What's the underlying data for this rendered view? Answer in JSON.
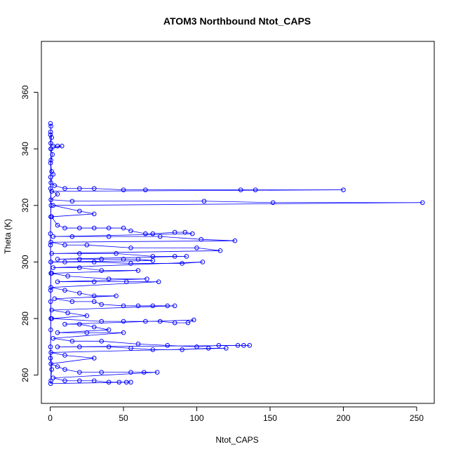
{
  "chart_data": {
    "type": "scatter",
    "title": "ATOM3 Northbound Ntot_CAPS",
    "xlabel": "Ntot_CAPS",
    "ylabel": "Theta (K)",
    "xlim": [
      -6,
      262
    ],
    "ylim": [
      250,
      378
    ],
    "x_ticks": [
      0,
      50,
      100,
      150,
      200,
      250
    ],
    "y_ticks": [
      260,
      280,
      300,
      320,
      340,
      360
    ],
    "grid": false,
    "legend": "none",
    "style": "lines and open circles",
    "color": "#0000ff",
    "series": [
      {
        "points": [
          [
            0.2,
            349
          ],
          [
            0.5,
            348
          ],
          [
            0.3,
            346
          ],
          [
            1,
            344
          ],
          [
            0.4,
            342
          ],
          [
            2,
            341
          ],
          [
            5,
            341
          ],
          [
            8,
            341
          ],
          [
            0.6,
            340
          ],
          [
            1.5,
            338
          ],
          [
            0.3,
            335
          ],
          [
            1,
            332
          ],
          [
            2,
            331
          ],
          [
            0.5,
            328
          ],
          [
            3,
            327
          ],
          [
            10,
            326
          ],
          [
            20,
            326
          ],
          [
            30,
            326
          ],
          [
            50,
            325.5
          ],
          [
            65,
            325.5
          ],
          [
            130,
            325.5
          ],
          [
            140,
            325.5
          ],
          [
            200,
            325.5
          ],
          [
            1,
            325
          ],
          [
            5,
            324
          ],
          [
            0.5,
            322
          ],
          [
            15,
            321.5
          ],
          [
            105,
            321.5
          ],
          [
            152,
            321
          ],
          [
            254,
            321
          ],
          [
            2,
            320
          ],
          [
            20,
            318
          ],
          [
            30,
            317
          ],
          [
            1,
            316
          ],
          [
            5,
            313
          ],
          [
            10,
            312
          ],
          [
            20,
            312
          ],
          [
            30,
            312
          ],
          [
            40,
            312
          ],
          [
            50,
            312
          ],
          [
            55,
            311
          ],
          [
            65,
            310
          ],
          [
            70,
            310
          ],
          [
            85,
            310.5
          ],
          [
            92,
            310.5
          ],
          [
            97,
            310
          ],
          [
            2,
            309
          ],
          [
            15,
            309
          ],
          [
            40,
            309
          ],
          [
            75,
            309
          ],
          [
            103,
            308
          ],
          [
            126,
            307.5
          ],
          [
            0.5,
            307
          ],
          [
            10,
            306
          ],
          [
            25,
            306
          ],
          [
            55,
            305
          ],
          [
            100,
            305
          ],
          [
            116,
            304
          ],
          [
            1,
            303
          ],
          [
            20,
            303
          ],
          [
            45,
            303
          ],
          [
            70,
            302
          ],
          [
            85,
            302
          ],
          [
            93,
            302
          ],
          [
            5,
            301
          ],
          [
            20,
            301
          ],
          [
            35,
            301
          ],
          [
            50,
            301
          ],
          [
            60,
            301
          ],
          [
            70,
            300.5
          ],
          [
            0.5,
            300
          ],
          [
            10,
            300
          ],
          [
            30,
            300
          ],
          [
            55,
            299.5
          ],
          [
            90,
            299.5
          ],
          [
            104,
            300
          ],
          [
            2,
            298
          ],
          [
            20,
            298
          ],
          [
            35,
            297
          ],
          [
            60,
            297
          ],
          [
            1,
            296
          ],
          [
            12,
            295
          ],
          [
            40,
            294
          ],
          [
            66,
            294
          ],
          [
            5,
            293
          ],
          [
            30,
            293
          ],
          [
            52,
            293
          ],
          [
            74,
            293
          ],
          [
            0.5,
            291
          ],
          [
            10,
            290
          ],
          [
            20,
            289
          ],
          [
            30,
            288
          ],
          [
            45,
            288
          ],
          [
            3,
            287
          ],
          [
            15,
            286
          ],
          [
            30,
            286
          ],
          [
            35,
            285
          ],
          [
            50,
            284.5
          ],
          [
            60,
            284.5
          ],
          [
            70,
            284.5
          ],
          [
            80,
            284.5
          ],
          [
            85,
            284.5
          ],
          [
            1,
            283
          ],
          [
            12,
            282
          ],
          [
            25,
            281
          ],
          [
            1,
            280
          ],
          [
            35,
            279
          ],
          [
            50,
            279
          ],
          [
            65,
            279
          ],
          [
            75,
            279
          ],
          [
            85,
            278.5
          ],
          [
            94,
            278.5
          ],
          [
            98,
            279.5
          ],
          [
            10,
            278
          ],
          [
            20,
            278
          ],
          [
            30,
            277
          ],
          [
            40,
            276
          ],
          [
            5,
            275
          ],
          [
            25,
            275
          ],
          [
            50,
            275
          ],
          [
            2,
            273
          ],
          [
            15,
            272
          ],
          [
            35,
            272
          ],
          [
            60,
            271
          ],
          [
            80,
            270.5
          ],
          [
            100,
            270
          ],
          [
            115,
            270.5
          ],
          [
            128,
            270.5
          ],
          [
            132,
            270.5
          ],
          [
            136,
            270.5
          ],
          [
            5,
            270
          ],
          [
            20,
            270
          ],
          [
            40,
            270
          ],
          [
            55,
            269.5
          ],
          [
            70,
            269
          ],
          [
            90,
            269
          ],
          [
            108,
            269.5
          ],
          [
            120,
            269.5
          ],
          [
            0.5,
            268
          ],
          [
            10,
            267
          ],
          [
            30,
            266
          ],
          [
            0.5,
            264
          ],
          [
            5,
            263
          ],
          [
            10,
            262
          ],
          [
            20,
            261
          ],
          [
            35,
            261
          ],
          [
            55,
            261
          ],
          [
            64,
            261
          ],
          [
            73,
            261
          ],
          [
            2,
            259
          ],
          [
            10,
            258
          ],
          [
            20,
            258
          ],
          [
            30,
            258
          ],
          [
            40,
            257.5
          ],
          [
            47,
            257.5
          ],
          [
            52,
            257.5
          ],
          [
            55,
            257.5
          ],
          [
            0.3,
            257
          ],
          [
            1,
            262
          ],
          [
            0.2,
            270
          ],
          [
            0.5,
            280
          ],
          [
            0.3,
            290
          ],
          [
            0.4,
            300
          ],
          [
            0.2,
            310
          ],
          [
            0.6,
            320
          ],
          [
            0.3,
            330
          ],
          [
            0.4,
            340
          ],
          [
            0.2,
            345
          ],
          [
            0.5,
            336
          ],
          [
            0.3,
            326
          ],
          [
            0.4,
            316
          ],
          [
            0.2,
            306
          ],
          [
            0.5,
            296
          ],
          [
            0.3,
            286
          ],
          [
            0.4,
            276
          ],
          [
            0.2,
            266
          ],
          [
            0.5,
            258
          ]
        ]
      }
    ]
  }
}
